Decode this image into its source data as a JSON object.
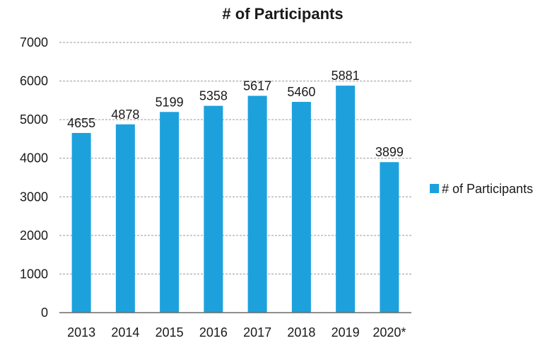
{
  "chart_data": {
    "type": "bar",
    "title": "# of Participants",
    "xlabel": "",
    "ylabel": "",
    "categories": [
      "2013",
      "2014",
      "2015",
      "2016",
      "2017",
      "2018",
      "2019",
      "2020*"
    ],
    "series": [
      {
        "name": "# of Participants",
        "values": [
          4655,
          4878,
          5199,
          5358,
          5617,
          5460,
          5881,
          3899
        ],
        "color": "#1da1dd"
      }
    ],
    "ylim": [
      0,
      7000
    ],
    "yticks": [
      "0",
      "1000",
      "2000",
      "3000",
      "4000",
      "5000",
      "6000",
      "7000"
    ],
    "grid": true,
    "legend_position": "right"
  }
}
